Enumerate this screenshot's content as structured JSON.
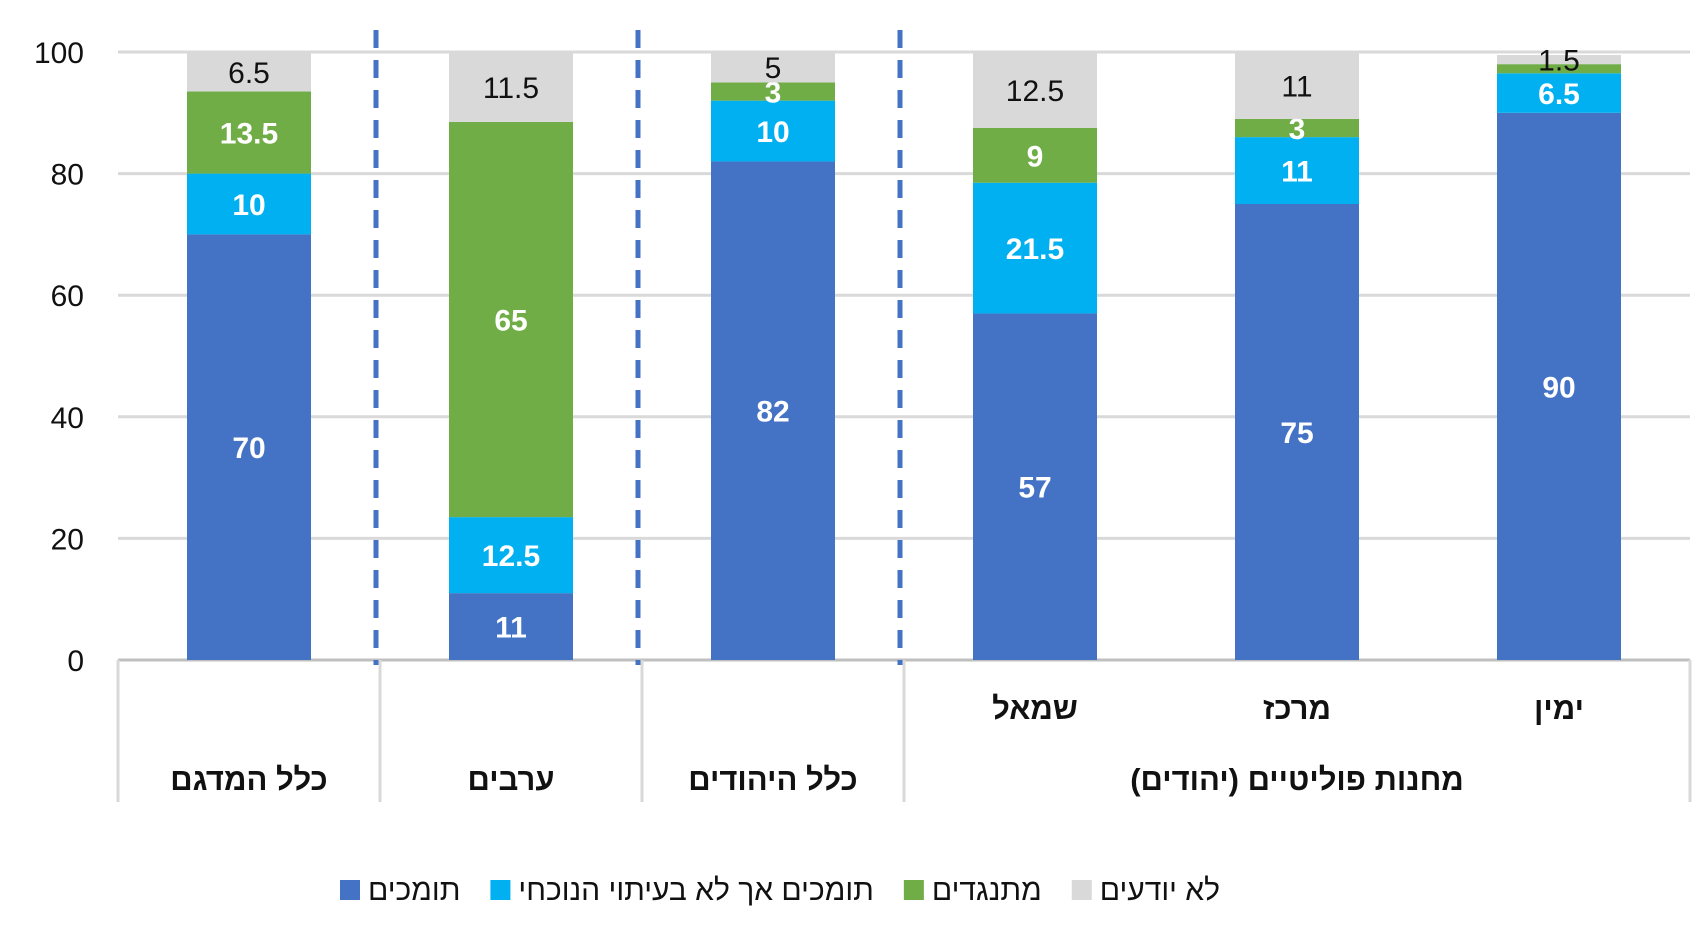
{
  "chart_data": {
    "type": "bar",
    "stacked": true,
    "ylim": [
      0,
      100
    ],
    "yticks": [
      0,
      20,
      40,
      60,
      80,
      100
    ],
    "grid": true,
    "legend_position": "bottom",
    "categories": [
      "כלל המדגם",
      "ערבים",
      "כלל היהודים",
      "שמאל",
      "מרכז",
      "ימין"
    ],
    "group_labels": [
      {
        "label": "כלל המדגם",
        "from": 0,
        "to": 0
      },
      {
        "label": "ערבים",
        "from": 1,
        "to": 1
      },
      {
        "label": "כלל היהודים",
        "from": 2,
        "to": 2
      },
      {
        "label": "מחנות פוליטיים (יהודים)",
        "from": 3,
        "to": 5
      }
    ],
    "series": [
      {
        "name": "תומכים",
        "color": "#4472C4",
        "values": [
          70,
          11,
          82,
          57,
          75,
          90
        ],
        "labels": [
          "70",
          "11",
          "82",
          "57",
          "75",
          "90"
        ]
      },
      {
        "name": "תומכים אך לא בעיתוי הנוכחי",
        "color": "#00B0F0",
        "values": [
          10,
          12.5,
          10,
          21.5,
          11,
          6.5
        ],
        "labels": [
          "10",
          "12.5",
          "10",
          "21.5",
          "11",
          "6.5"
        ]
      },
      {
        "name": "מתנגדים",
        "color": "#70AD47",
        "values": [
          13.5,
          65,
          3,
          9,
          3,
          1.5
        ],
        "labels": [
          "13.5",
          "65",
          "3",
          "9",
          "3",
          ""
        ]
      },
      {
        "name": "לא יודעים",
        "color": "#D9D9D9",
        "values": [
          6.5,
          11.5,
          5,
          12.5,
          11,
          1.5
        ],
        "labels": [
          "6.5",
          "11.5",
          "5",
          "12.5",
          "11",
          "1.5"
        ]
      }
    ],
    "legend_order": [
      0,
      1,
      2,
      3
    ]
  }
}
